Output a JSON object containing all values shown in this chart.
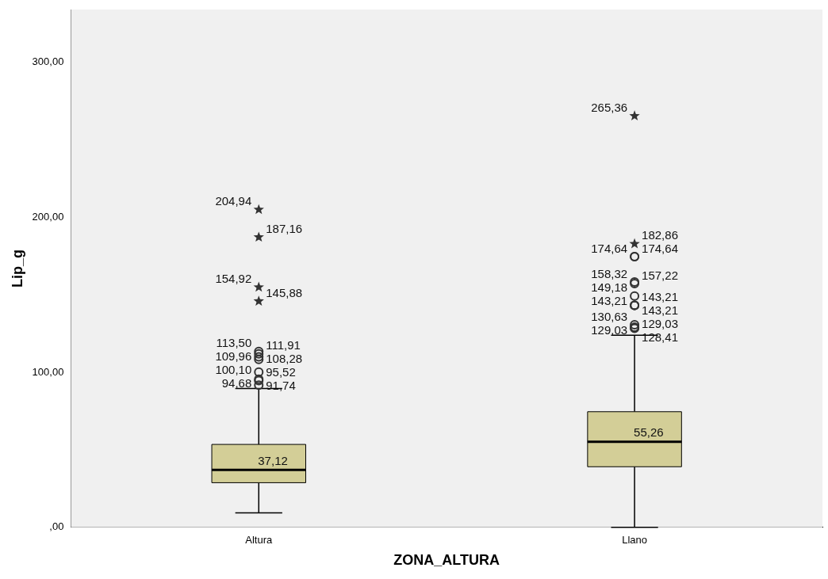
{
  "chart_data": {
    "type": "box",
    "xlabel": "ZONA_ALTURA",
    "ylabel": "Lip_g",
    "categories": [
      "Altura",
      "Llano"
    ],
    "color": "#d3ce97",
    "boxes": [
      {
        "low": 9.3,
        "q1": 28.8,
        "median": 37.12,
        "q3": 53.5,
        "high": 89.5
      },
      {
        "low": 0,
        "q1": 39.1,
        "median": 55.26,
        "q3": 74.6,
        "high": 123.9
      }
    ],
    "series": [
      {
        "type": "scatter",
        "marker": "circle",
        "color": "#333333",
        "x": [
          "Altura",
          "Altura",
          "Altura",
          "Altura",
          "Altura",
          "Altura",
          "Altura",
          "Altura",
          "Llano",
          "Llano",
          "Llano",
          "Llano",
          "Llano",
          "Llano",
          "Llano",
          "Llano",
          "Llano",
          "Llano",
          "Llano",
          "Llano"
        ],
        "values": [
          113.5,
          111.91,
          109.96,
          108.28,
          100.1,
          95.52,
          94.68,
          91.74,
          174.64,
          174.64,
          158.32,
          157.22,
          149.18,
          143.21,
          143.21,
          143.21,
          130.63,
          129.03,
          129.03,
          128.41
        ],
        "value_labels": [
          "113,50",
          "111,91",
          "109,96",
          "108,28",
          "100,10",
          "95,52",
          "94,68",
          "91,74",
          "174,64",
          "174,64",
          "158,32",
          "157,22",
          "149,18",
          "143,21",
          "143,21",
          "143,21",
          "130,63",
          "129,03",
          "129,03",
          "128,41"
        ]
      },
      {
        "type": "scatter",
        "marker": "star",
        "color": "#333333",
        "x": [
          "Altura",
          "Altura",
          "Altura",
          "Altura",
          "Llano",
          "Llano"
        ],
        "values": [
          204.94,
          187.16,
          154.92,
          145.88,
          265.36,
          182.86
        ],
        "value_labels": [
          "204,94",
          "187,16",
          "154,92",
          "145,88",
          "265,36",
          "182,86"
        ]
      }
    ],
    "annotations": [
      {
        "text": "37,12",
        "x": "Altura",
        "y": 37.12
      },
      {
        "text": "55,26",
        "x": "Llano",
        "y": 55.26
      }
    ],
    "ylim": [
      0,
      334
    ],
    "yticks": [
      {
        "value": 0,
        "label": ",00"
      },
      {
        "value": 100,
        "label": "100,00"
      },
      {
        "value": 200,
        "label": "200,00"
      },
      {
        "value": 300,
        "label": "300,00"
      }
    ],
    "grid": false,
    "legend": false
  }
}
